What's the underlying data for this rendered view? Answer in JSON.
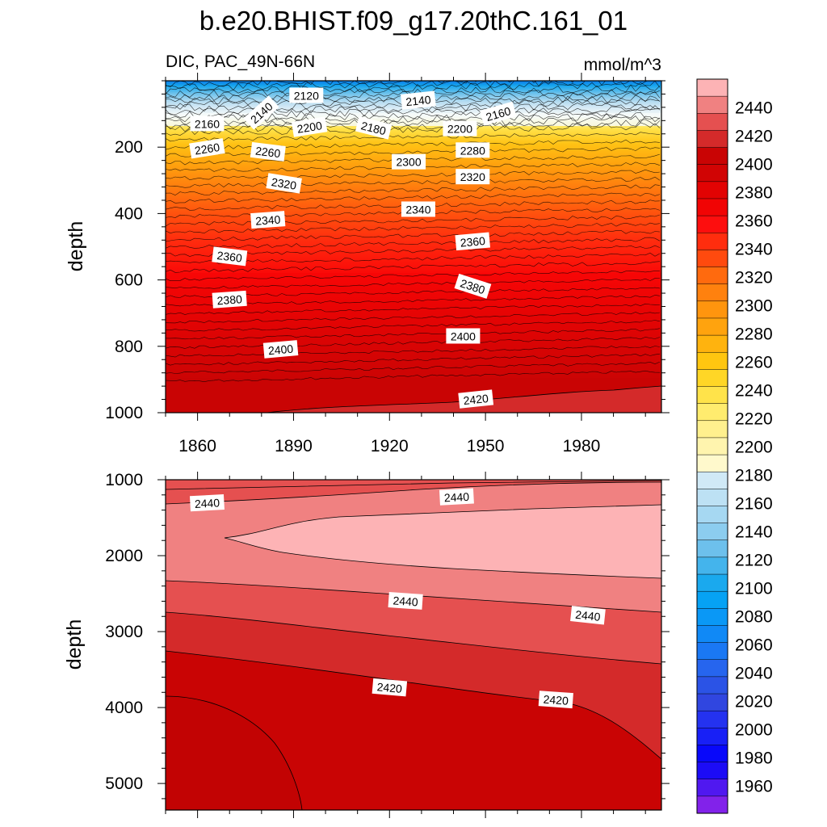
{
  "chart_data": {
    "type": "contour",
    "title": "b.e20.BHIST.f09_g17.20thC.161_01",
    "left_string": "DIC, PAC_49N-66N",
    "right_string": "mmol/m^3",
    "xlabel": "",
    "x_range": [
      1850,
      2005
    ],
    "x_ticks": [
      "1860",
      "1890",
      "1920",
      "1950",
      "1980"
    ],
    "x_tick_values": [
      1860,
      1890,
      1920,
      1950,
      1980
    ],
    "panels": [
      {
        "name": "upper",
        "ylabel": "depth",
        "y_range": [
          0,
          1000
        ],
        "y_ticks": [
          "200",
          "400",
          "600",
          "800",
          "1000"
        ],
        "y_tick_values": [
          200,
          400,
          600,
          800,
          1000
        ],
        "contour_labels": [
          {
            "value": "2120",
            "year": 1894,
            "depth": 45,
            "angle": 0
          },
          {
            "value": "2140",
            "year": 1929,
            "depth": 60,
            "angle": -6
          },
          {
            "value": "2140",
            "year": 1880,
            "depth": 97,
            "angle": -42
          },
          {
            "value": "2160",
            "year": 1863,
            "depth": 130,
            "angle": 0
          },
          {
            "value": "2160",
            "year": 1954,
            "depth": 100,
            "angle": -16
          },
          {
            "value": "2200",
            "year": 1895,
            "depth": 140,
            "angle": -9
          },
          {
            "value": "2180",
            "year": 1915,
            "depth": 143,
            "angle": 14
          },
          {
            "value": "2200",
            "year": 1942,
            "depth": 145,
            "angle": 0
          },
          {
            "value": "2260",
            "year": 1863,
            "depth": 205,
            "angle": -9
          },
          {
            "value": "2260",
            "year": 1882,
            "depth": 215,
            "angle": 7
          },
          {
            "value": "2280",
            "year": 1946,
            "depth": 210,
            "angle": 0
          },
          {
            "value": "2300",
            "year": 1926,
            "depth": 245,
            "angle": 0
          },
          {
            "value": "2320",
            "year": 1887,
            "depth": 310,
            "angle": 9
          },
          {
            "value": "2320",
            "year": 1946,
            "depth": 290,
            "angle": 0
          },
          {
            "value": "2340",
            "year": 1929,
            "depth": 388,
            "angle": 0
          },
          {
            "value": "2340",
            "year": 1882,
            "depth": 420,
            "angle": -4
          },
          {
            "value": "2360",
            "year": 1946,
            "depth": 485,
            "angle": -5
          },
          {
            "value": "2360",
            "year": 1870,
            "depth": 530,
            "angle": 7
          },
          {
            "value": "2380",
            "year": 1946,
            "depth": 620,
            "angle": 18
          },
          {
            "value": "2380",
            "year": 1870,
            "depth": 660,
            "angle": -4
          },
          {
            "value": "2400",
            "year": 1943,
            "depth": 770,
            "angle": 0
          },
          {
            "value": "2400",
            "year": 1886,
            "depth": 810,
            "angle": -5
          },
          {
            "value": "2420",
            "year": 1947,
            "depth": 960,
            "angle": -6
          }
        ]
      },
      {
        "name": "lower",
        "ylabel": "depth",
        "y_range": [
          1000,
          5350
        ],
        "y_ticks": [
          "1000",
          "2000",
          "3000",
          "4000",
          "5000"
        ],
        "y_tick_values": [
          1000,
          2000,
          3000,
          4000,
          5000
        ],
        "contour_labels": [
          {
            "value": "2440",
            "year": 1863,
            "depth": 1310,
            "angle": -3
          },
          {
            "value": "2440",
            "year": 1941,
            "depth": 1230,
            "angle": -3
          },
          {
            "value": "2440",
            "year": 1925,
            "depth": 2600,
            "angle": 4
          },
          {
            "value": "2440",
            "year": 1982,
            "depth": 2790,
            "angle": 6
          },
          {
            "value": "2420",
            "year": 1920,
            "depth": 3740,
            "angle": 5
          },
          {
            "value": "2420",
            "year": 1972,
            "depth": 3900,
            "angle": 4
          }
        ]
      }
    ],
    "colorbar": {
      "levels": [
        "2440",
        "2420",
        "2400",
        "2380",
        "2360",
        "2340",
        "2320",
        "2300",
        "2280",
        "2260",
        "2240",
        "2220",
        "2200",
        "2180",
        "2160",
        "2140",
        "2120",
        "2100",
        "2080",
        "2060",
        "2040",
        "2020",
        "2000",
        "1980",
        "1960"
      ],
      "colors": [
        "#fdb3b5",
        "#f08181",
        "#e55050",
        "#d42a2a",
        "#c90404",
        "#d10404",
        "#e20303",
        "#f10404",
        "#fd0e0e",
        "#ff2d0e",
        "#ff4a0e",
        "#ff6a0e",
        "#ff810e",
        "#ff950e",
        "#ffa30e",
        "#ffb30e",
        "#ffc610",
        "#ffd626",
        "#ffe34a",
        "#ffec6e",
        "#fff08e",
        "#fff4ae",
        "#fff9cc",
        "#d0e9f6",
        "#bde1f4",
        "#a6d8f2",
        "#8ccdef",
        "#6dc0ec",
        "#44b4ec",
        "#1aa9ee",
        "#06a2f4",
        "#0a98f6",
        "#1089f6",
        "#1a78f4",
        "#2665ee",
        "#2b53e6",
        "#3046e0",
        "#2432f0",
        "#1820f6",
        "#0808fa",
        "#1c0cf6",
        "#5018f0",
        "#8222ea"
      ]
    }
  }
}
